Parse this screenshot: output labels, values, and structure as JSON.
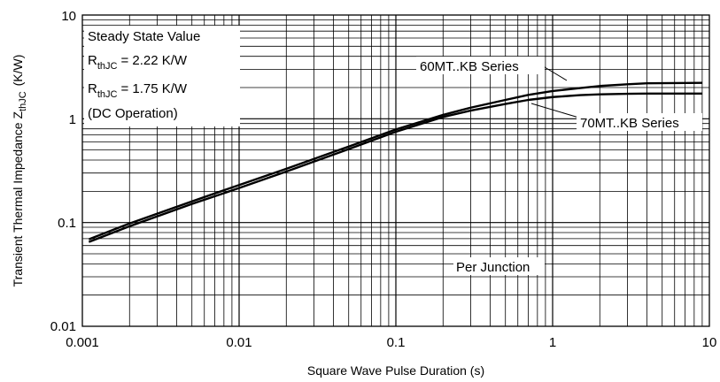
{
  "chart_data": {
    "type": "line",
    "title": "",
    "xlabel": "Square Wave Pulse Duration (s)",
    "ylabel_main": "Transient Thermal Impedance Z",
    "ylabel_sub": "thJC",
    "ylabel_unit": "(K/W)",
    "xscale": "log",
    "yscale": "log",
    "xlim": [
      0.001,
      10
    ],
    "ylim": [
      0.01,
      10
    ],
    "grid": true,
    "x_ticks": [
      "0.001",
      "0.01",
      "0.1",
      "1",
      "10"
    ],
    "y_ticks": [
      "0.01",
      "0.1",
      "1",
      "10"
    ],
    "series": [
      {
        "name": "60MT..KB Series",
        "x": [
          0.0011,
          0.002,
          0.005,
          0.01,
          0.02,
          0.05,
          0.1,
          0.2,
          0.3,
          0.5,
          0.7,
          1,
          1.5,
          2,
          3,
          4,
          6,
          9
        ],
        "y": [
          0.069,
          0.098,
          0.16,
          0.23,
          0.33,
          0.54,
          0.79,
          1.09,
          1.28,
          1.52,
          1.7,
          1.85,
          1.98,
          2.07,
          2.15,
          2.2,
          2.21,
          2.22
        ]
      },
      {
        "name": "70MT..KB Series",
        "x": [
          0.0011,
          0.002,
          0.005,
          0.01,
          0.02,
          0.05,
          0.1,
          0.2,
          0.3,
          0.5,
          0.7,
          1,
          1.5,
          2,
          3,
          4,
          6,
          9
        ],
        "y": [
          0.065,
          0.092,
          0.151,
          0.215,
          0.31,
          0.51,
          0.75,
          1.04,
          1.2,
          1.39,
          1.52,
          1.62,
          1.69,
          1.72,
          1.74,
          1.75,
          1.75,
          1.75
        ]
      }
    ],
    "annotations": {
      "steady_state_title": "Steady State Value",
      "r_main": "R",
      "r_sub": "thJC",
      "r_val_1": "= 2.22 K/W",
      "r_val_2": "= 1.75 K/W",
      "dc_operation": "(DC Operation)",
      "per_junction": "Per Junction"
    },
    "colors": {
      "line": "#000000",
      "grid": "#000000",
      "background": "#ffffff"
    }
  }
}
